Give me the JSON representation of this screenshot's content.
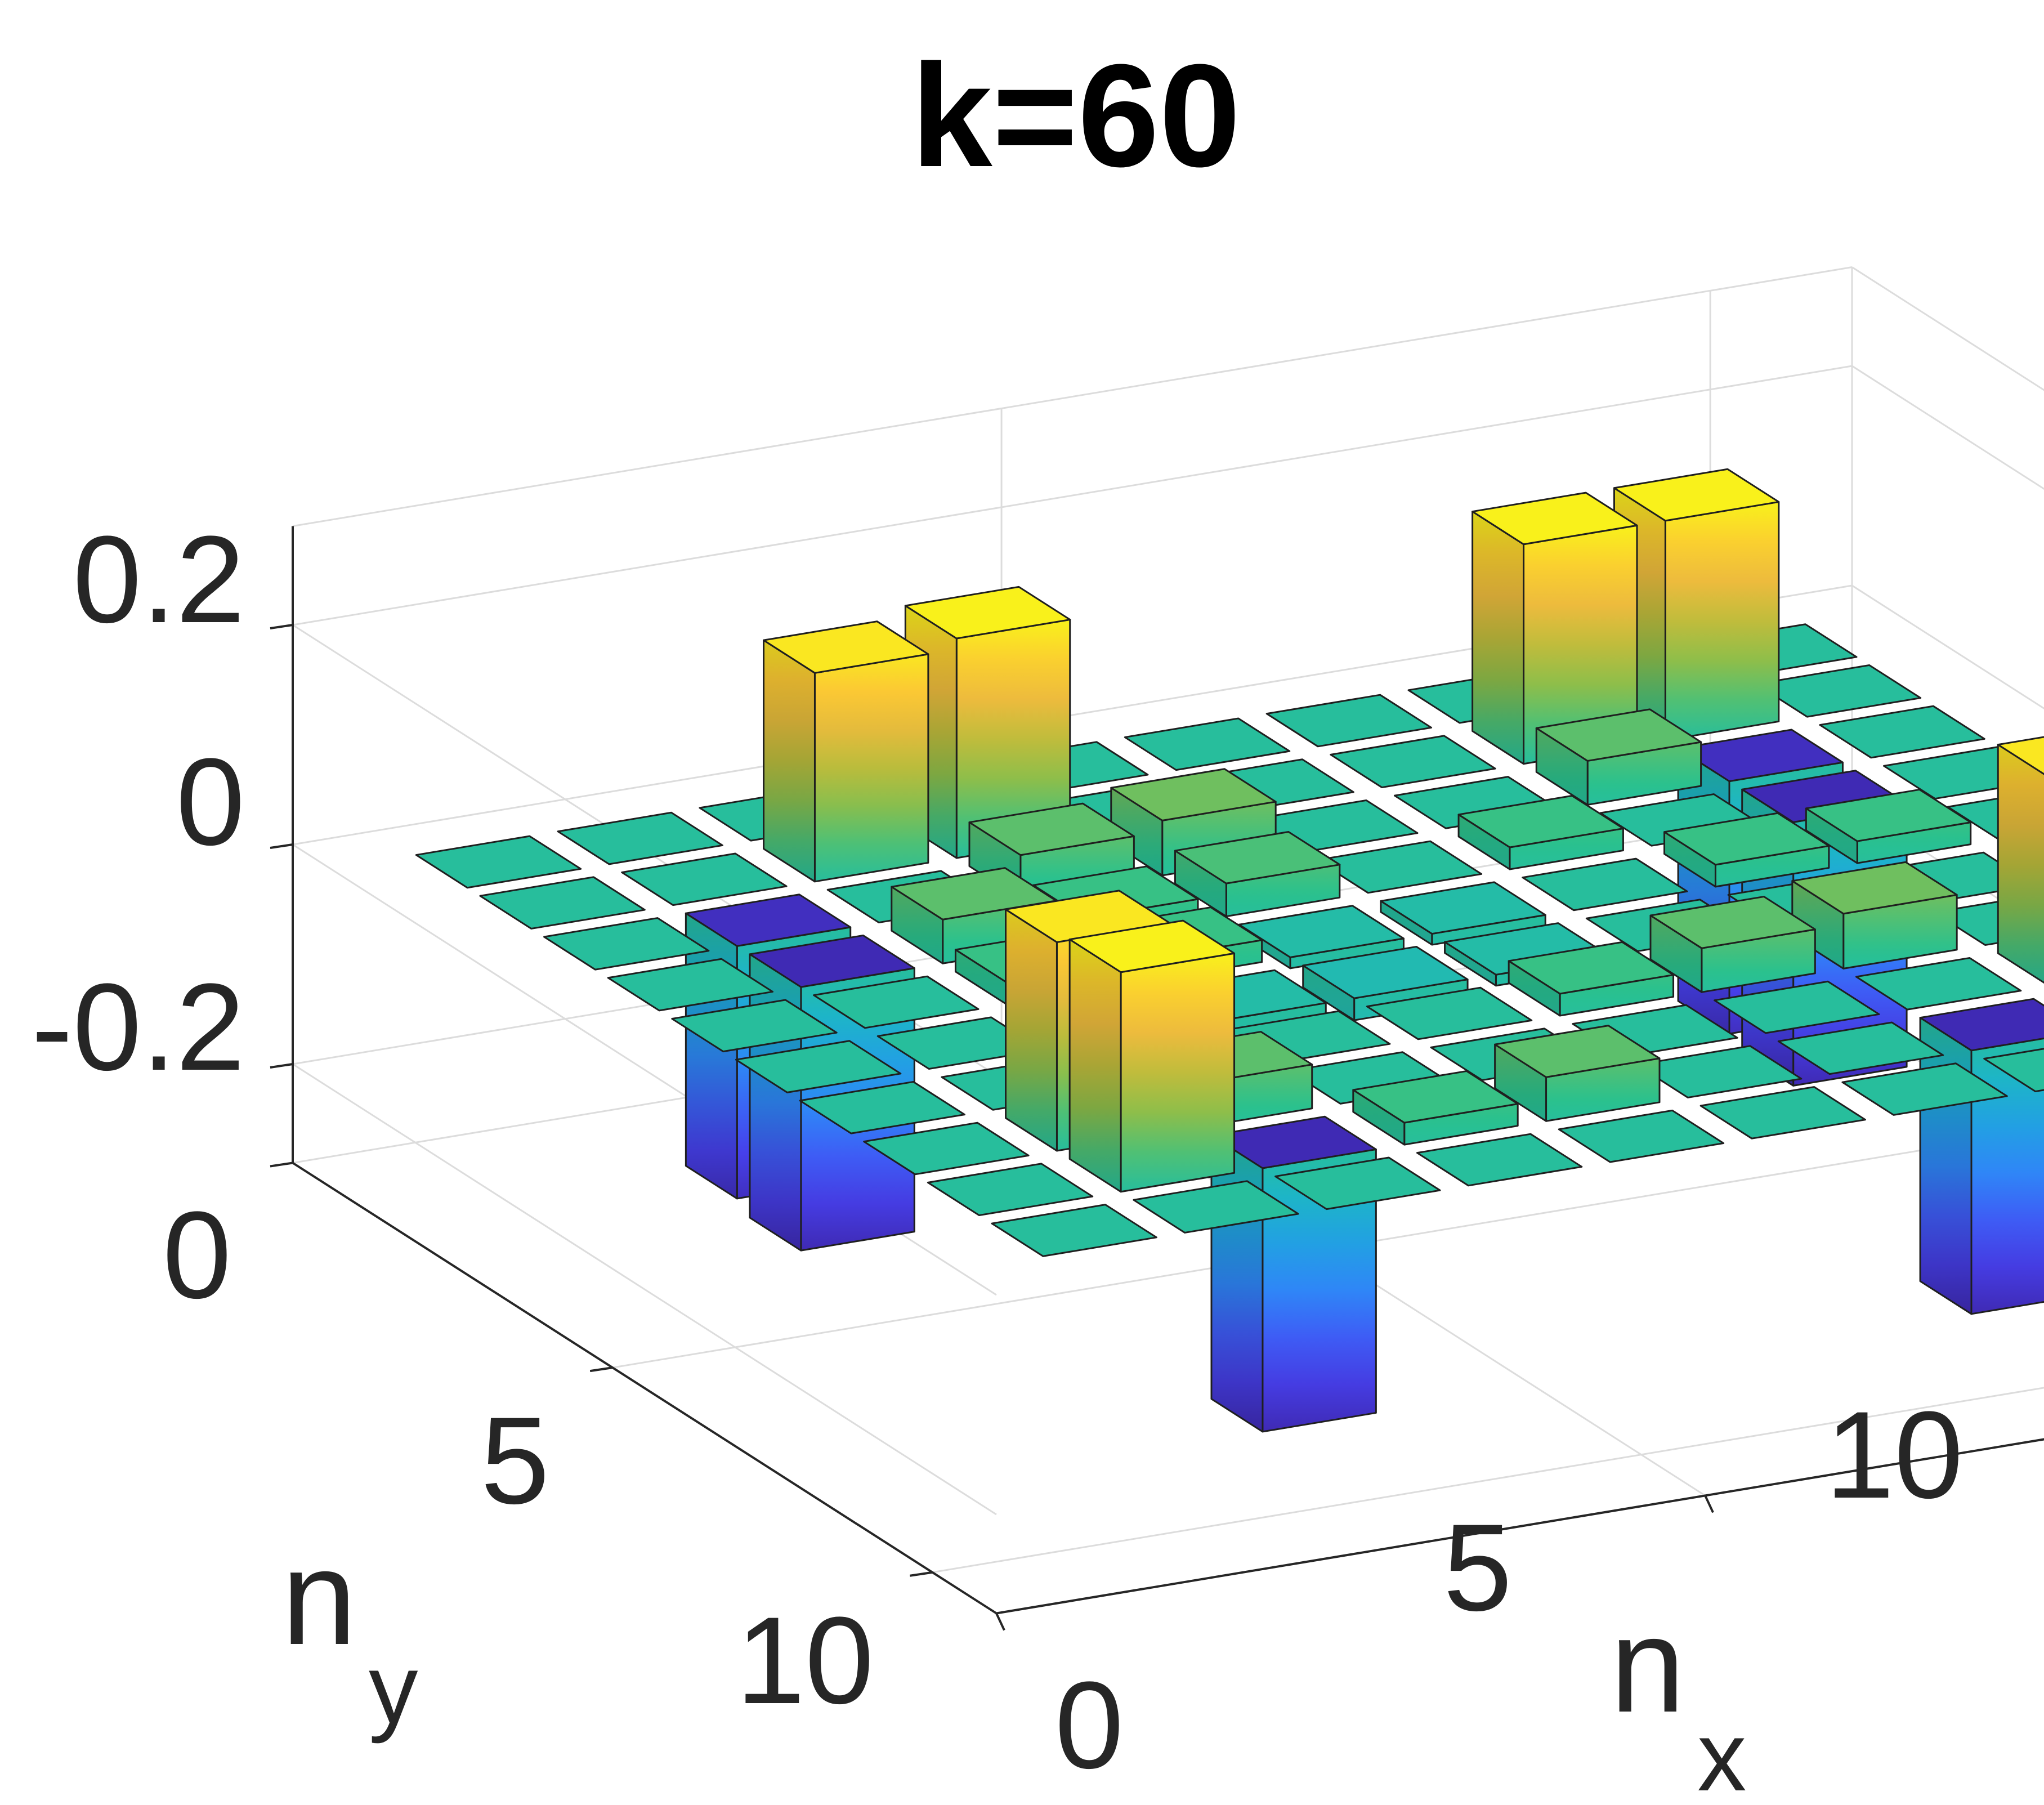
{
  "chart_data": {
    "type": "bar3",
    "title": "k=60",
    "xlabel": "n",
    "xlabel_subscript": "x",
    "ylabel": "n",
    "ylabel_subscript": "y",
    "zlabel": "",
    "x_ticks": [
      "0",
      "5",
      "10"
    ],
    "y_ticks": [
      "0",
      "5",
      "10"
    ],
    "z_ticks": [
      "-0.2",
      "0",
      "0.2"
    ],
    "xlim": [
      0,
      11
    ],
    "ylim": [
      0,
      11
    ],
    "zlim": [
      -0.29,
      0.29
    ],
    "grid": true,
    "colormap": "parula",
    "colormap_stops": [
      "#3e26a8",
      "#4743f4",
      "#2e87f7",
      "#1ab2d5",
      "#2ac18e",
      "#a4bd3b",
      "#fbba3d",
      "#f9fb15"
    ],
    "bar_values": [
      [
        0.0,
        0.0,
        0.0,
        0.0,
        0.0,
        0.0,
        0.0,
        0.0,
        0.0,
        0.0
      ],
      [
        0.0,
        0.0,
        0.19,
        0.2,
        0.0,
        0.0,
        0.0,
        0.2,
        0.2,
        0.0
      ],
      [
        0.0,
        -0.23,
        0.0,
        0.04,
        0.05,
        0.0,
        0.0,
        0.04,
        -0.23,
        0.0
      ],
      [
        0.0,
        -0.24,
        0.04,
        0.02,
        0.03,
        0.0,
        0.02,
        0.0,
        -0.24,
        0.0
      ],
      [
        0.0,
        0.0,
        0.02,
        0.02,
        -0.01,
        -0.01,
        0.0,
        0.02,
        0.02,
        0.0
      ],
      [
        0.0,
        0.0,
        0.0,
        -0.01,
        -0.02,
        -0.01,
        0.0,
        0.0,
        0.0,
        0.0
      ],
      [
        0.0,
        0.0,
        0.02,
        0.0,
        0.0,
        0.02,
        0.04,
        0.05,
        0.0,
        0.0
      ],
      [
        0.0,
        0.19,
        0.04,
        0.0,
        0.0,
        0.0,
        0.0,
        0.0,
        0.19,
        0.0
      ],
      [
        0.0,
        0.2,
        -0.24,
        0.02,
        0.04,
        0.0,
        0.0,
        -0.24,
        0.2,
        0.0
      ],
      [
        0.0,
        0.0,
        0.0,
        0.0,
        0.0,
        0.0,
        0.0,
        0.0,
        0.0,
        0.0
      ]
    ]
  }
}
